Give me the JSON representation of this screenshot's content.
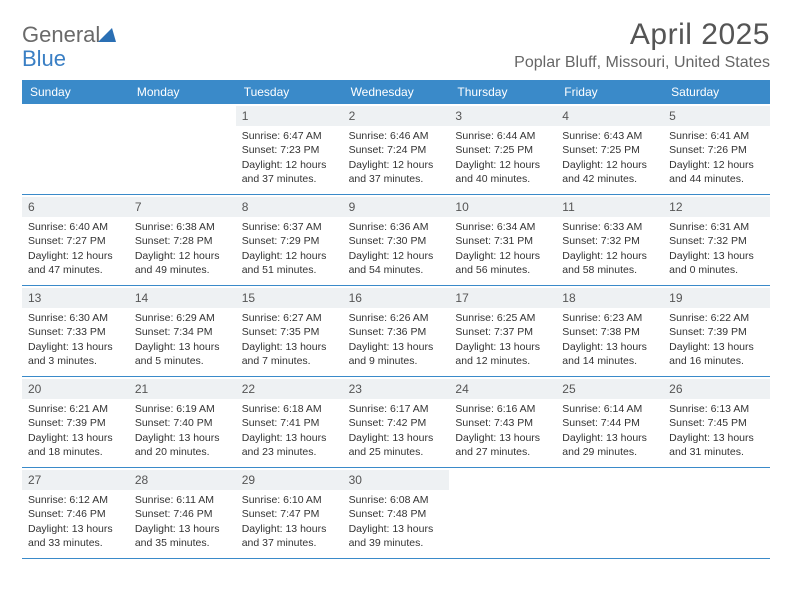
{
  "logo": {
    "text_gray": "General",
    "text_blue": "Blue"
  },
  "title": "April 2025",
  "location": "Poplar Bluff, Missouri, United States",
  "colors": {
    "header_bar": "#3a8ac9",
    "daynum_bg": "#eef1f3",
    "week_divider": "#3a8ac9",
    "text": "#333333",
    "title_text": "#555555",
    "location_text": "#666666",
    "logo_gray": "#6a6a6a",
    "logo_blue": "#3a7fc4"
  },
  "weekdays": [
    "Sunday",
    "Monday",
    "Tuesday",
    "Wednesday",
    "Thursday",
    "Friday",
    "Saturday"
  ],
  "weeks": [
    [
      {
        "empty": true
      },
      {
        "empty": true
      },
      {
        "num": "1",
        "sunrise": "Sunrise: 6:47 AM",
        "sunset": "Sunset: 7:23 PM",
        "daylight1": "Daylight: 12 hours",
        "daylight2": "and 37 minutes."
      },
      {
        "num": "2",
        "sunrise": "Sunrise: 6:46 AM",
        "sunset": "Sunset: 7:24 PM",
        "daylight1": "Daylight: 12 hours",
        "daylight2": "and 37 minutes."
      },
      {
        "num": "3",
        "sunrise": "Sunrise: 6:44 AM",
        "sunset": "Sunset: 7:25 PM",
        "daylight1": "Daylight: 12 hours",
        "daylight2": "and 40 minutes."
      },
      {
        "num": "4",
        "sunrise": "Sunrise: 6:43 AM",
        "sunset": "Sunset: 7:25 PM",
        "daylight1": "Daylight: 12 hours",
        "daylight2": "and 42 minutes."
      },
      {
        "num": "5",
        "sunrise": "Sunrise: 6:41 AM",
        "sunset": "Sunset: 7:26 PM",
        "daylight1": "Daylight: 12 hours",
        "daylight2": "and 44 minutes."
      }
    ],
    [
      {
        "num": "6",
        "sunrise": "Sunrise: 6:40 AM",
        "sunset": "Sunset: 7:27 PM",
        "daylight1": "Daylight: 12 hours",
        "daylight2": "and 47 minutes."
      },
      {
        "num": "7",
        "sunrise": "Sunrise: 6:38 AM",
        "sunset": "Sunset: 7:28 PM",
        "daylight1": "Daylight: 12 hours",
        "daylight2": "and 49 minutes."
      },
      {
        "num": "8",
        "sunrise": "Sunrise: 6:37 AM",
        "sunset": "Sunset: 7:29 PM",
        "daylight1": "Daylight: 12 hours",
        "daylight2": "and 51 minutes."
      },
      {
        "num": "9",
        "sunrise": "Sunrise: 6:36 AM",
        "sunset": "Sunset: 7:30 PM",
        "daylight1": "Daylight: 12 hours",
        "daylight2": "and 54 minutes."
      },
      {
        "num": "10",
        "sunrise": "Sunrise: 6:34 AM",
        "sunset": "Sunset: 7:31 PM",
        "daylight1": "Daylight: 12 hours",
        "daylight2": "and 56 minutes."
      },
      {
        "num": "11",
        "sunrise": "Sunrise: 6:33 AM",
        "sunset": "Sunset: 7:32 PM",
        "daylight1": "Daylight: 12 hours",
        "daylight2": "and 58 minutes."
      },
      {
        "num": "12",
        "sunrise": "Sunrise: 6:31 AM",
        "sunset": "Sunset: 7:32 PM",
        "daylight1": "Daylight: 13 hours",
        "daylight2": "and 0 minutes."
      }
    ],
    [
      {
        "num": "13",
        "sunrise": "Sunrise: 6:30 AM",
        "sunset": "Sunset: 7:33 PM",
        "daylight1": "Daylight: 13 hours",
        "daylight2": "and 3 minutes."
      },
      {
        "num": "14",
        "sunrise": "Sunrise: 6:29 AM",
        "sunset": "Sunset: 7:34 PM",
        "daylight1": "Daylight: 13 hours",
        "daylight2": "and 5 minutes."
      },
      {
        "num": "15",
        "sunrise": "Sunrise: 6:27 AM",
        "sunset": "Sunset: 7:35 PM",
        "daylight1": "Daylight: 13 hours",
        "daylight2": "and 7 minutes."
      },
      {
        "num": "16",
        "sunrise": "Sunrise: 6:26 AM",
        "sunset": "Sunset: 7:36 PM",
        "daylight1": "Daylight: 13 hours",
        "daylight2": "and 9 minutes."
      },
      {
        "num": "17",
        "sunrise": "Sunrise: 6:25 AM",
        "sunset": "Sunset: 7:37 PM",
        "daylight1": "Daylight: 13 hours",
        "daylight2": "and 12 minutes."
      },
      {
        "num": "18",
        "sunrise": "Sunrise: 6:23 AM",
        "sunset": "Sunset: 7:38 PM",
        "daylight1": "Daylight: 13 hours",
        "daylight2": "and 14 minutes."
      },
      {
        "num": "19",
        "sunrise": "Sunrise: 6:22 AM",
        "sunset": "Sunset: 7:39 PM",
        "daylight1": "Daylight: 13 hours",
        "daylight2": "and 16 minutes."
      }
    ],
    [
      {
        "num": "20",
        "sunrise": "Sunrise: 6:21 AM",
        "sunset": "Sunset: 7:39 PM",
        "daylight1": "Daylight: 13 hours",
        "daylight2": "and 18 minutes."
      },
      {
        "num": "21",
        "sunrise": "Sunrise: 6:19 AM",
        "sunset": "Sunset: 7:40 PM",
        "daylight1": "Daylight: 13 hours",
        "daylight2": "and 20 minutes."
      },
      {
        "num": "22",
        "sunrise": "Sunrise: 6:18 AM",
        "sunset": "Sunset: 7:41 PM",
        "daylight1": "Daylight: 13 hours",
        "daylight2": "and 23 minutes."
      },
      {
        "num": "23",
        "sunrise": "Sunrise: 6:17 AM",
        "sunset": "Sunset: 7:42 PM",
        "daylight1": "Daylight: 13 hours",
        "daylight2": "and 25 minutes."
      },
      {
        "num": "24",
        "sunrise": "Sunrise: 6:16 AM",
        "sunset": "Sunset: 7:43 PM",
        "daylight1": "Daylight: 13 hours",
        "daylight2": "and 27 minutes."
      },
      {
        "num": "25",
        "sunrise": "Sunrise: 6:14 AM",
        "sunset": "Sunset: 7:44 PM",
        "daylight1": "Daylight: 13 hours",
        "daylight2": "and 29 minutes."
      },
      {
        "num": "26",
        "sunrise": "Sunrise: 6:13 AM",
        "sunset": "Sunset: 7:45 PM",
        "daylight1": "Daylight: 13 hours",
        "daylight2": "and 31 minutes."
      }
    ],
    [
      {
        "num": "27",
        "sunrise": "Sunrise: 6:12 AM",
        "sunset": "Sunset: 7:46 PM",
        "daylight1": "Daylight: 13 hours",
        "daylight2": "and 33 minutes."
      },
      {
        "num": "28",
        "sunrise": "Sunrise: 6:11 AM",
        "sunset": "Sunset: 7:46 PM",
        "daylight1": "Daylight: 13 hours",
        "daylight2": "and 35 minutes."
      },
      {
        "num": "29",
        "sunrise": "Sunrise: 6:10 AM",
        "sunset": "Sunset: 7:47 PM",
        "daylight1": "Daylight: 13 hours",
        "daylight2": "and 37 minutes."
      },
      {
        "num": "30",
        "sunrise": "Sunrise: 6:08 AM",
        "sunset": "Sunset: 7:48 PM",
        "daylight1": "Daylight: 13 hours",
        "daylight2": "and 39 minutes."
      },
      {
        "empty": true
      },
      {
        "empty": true
      },
      {
        "empty": true
      }
    ]
  ]
}
